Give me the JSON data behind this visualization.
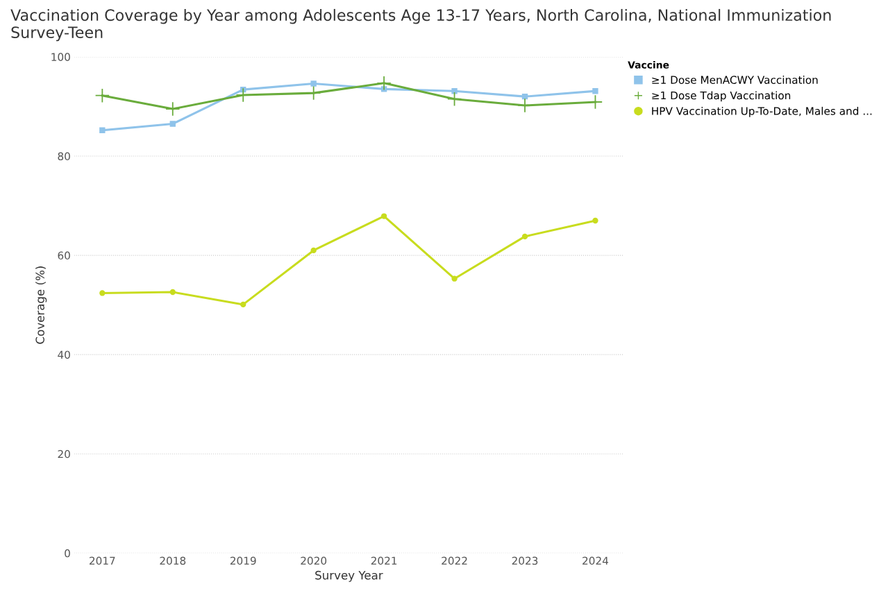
{
  "chart_data": {
    "type": "line",
    "title": "Vaccination Coverage by Year among Adolescents Age 13-17 Years, North Carolina, National Immunization Survey-Teen",
    "xlabel": "Survey Year",
    "ylabel": "Coverage (%)",
    "legend_title": "Vaccine",
    "categories": [
      "2017",
      "2018",
      "2019",
      "2020",
      "2021",
      "2022",
      "2023",
      "2024"
    ],
    "series": [
      {
        "name": "≥1 Dose MenACWY Vaccination",
        "color": "#8fc3ea",
        "marker": "square",
        "values": [
          85.2,
          86.5,
          93.4,
          94.6,
          93.5,
          93.1,
          92.0,
          93.1
        ]
      },
      {
        "name": "≥1 Dose Tdap Vaccination",
        "color": "#6aac3c",
        "marker": "cross",
        "values": [
          92.2,
          89.5,
          92.3,
          92.7,
          94.7,
          91.5,
          90.2,
          90.9
        ]
      },
      {
        "name": "HPV Vaccination Up-To-Date, Males and ...",
        "color": "#c8dc1e",
        "marker": "circle",
        "values": [
          52.4,
          52.6,
          50.1,
          61.0,
          67.9,
          55.3,
          63.8,
          67.0
        ]
      }
    ],
    "ylim": [
      0,
      100
    ],
    "yticks": [
      0,
      20,
      40,
      60,
      80,
      100
    ],
    "grid": "y",
    "legend": "top right"
  }
}
